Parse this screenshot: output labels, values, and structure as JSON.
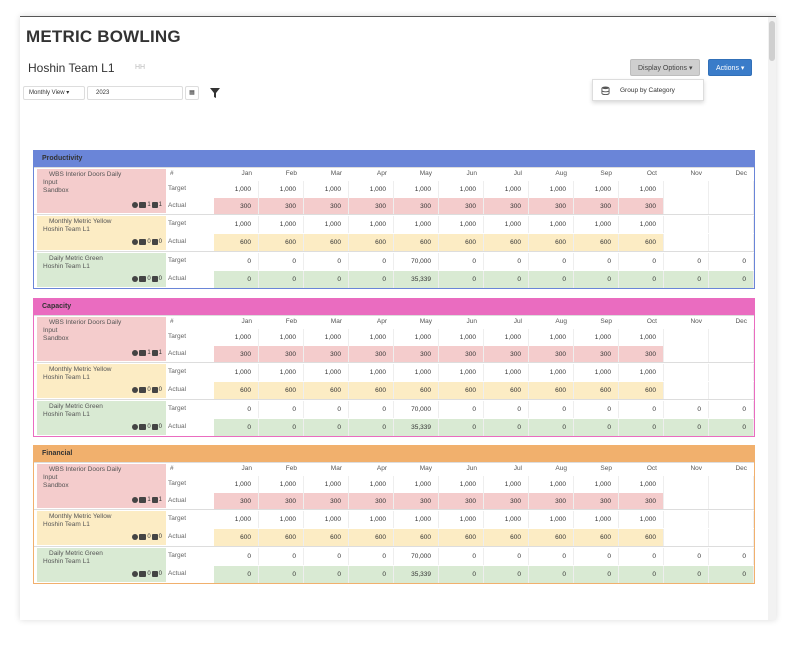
{
  "app_title": "METRIC BOWLING",
  "team": {
    "title": "Hoshin Team L1",
    "tag": "HH"
  },
  "buttons": {
    "display_options": "Display Options ▾",
    "actions": "Actions ▾"
  },
  "dropdown": {
    "group_by_category": "Group by Category"
  },
  "controls": {
    "view": "Monthly View ▾",
    "year": "2023",
    "calendar_icon": "▦"
  },
  "columns": {
    "hash": "#",
    "months": [
      "Jan",
      "Feb",
      "Mar",
      "Apr",
      "May",
      "Jun",
      "Jul",
      "Aug",
      "Sep",
      "Oct",
      "Nov",
      "Dec"
    ]
  },
  "row_labels": {
    "target": "Target",
    "actual": "Actual"
  },
  "colors": {
    "productivity": "#6a85d8",
    "capacity": "#ea6cc0",
    "financial": "#f1b06d",
    "red_bg": "#f4cccc",
    "yellow_bg": "#fcecc4",
    "green_bg": "#d9ead3"
  },
  "sections": [
    {
      "name": "Productivity",
      "metrics": [
        {
          "name_line1": "WBS Interior Doors Daily",
          "name_line2": "Input",
          "name_line3": "Sandbox",
          "icon_count_a": "1",
          "icon_count_b": "1",
          "color": "red",
          "target": [
            "1,000",
            "1,000",
            "1,000",
            "1,000",
            "1,000",
            "1,000",
            "1,000",
            "1,000",
            "1,000",
            "1,000",
            "",
            ""
          ],
          "actual": [
            "300",
            "300",
            "300",
            "300",
            "300",
            "300",
            "300",
            "300",
            "300",
            "300",
            "",
            ""
          ]
        },
        {
          "name_line1": "Monthly Metric Yellow",
          "name_line2": "Hoshin Team L1",
          "icon_count_a": "0",
          "icon_count_b": "0",
          "color": "yellow",
          "target": [
            "1,000",
            "1,000",
            "1,000",
            "1,000",
            "1,000",
            "1,000",
            "1,000",
            "1,000",
            "1,000",
            "1,000",
            "",
            ""
          ],
          "actual": [
            "600",
            "600",
            "600",
            "600",
            "600",
            "600",
            "600",
            "600",
            "600",
            "600",
            "",
            ""
          ]
        },
        {
          "name_line1": "Daily Metric Green",
          "name_line2": "Hoshin Team L1",
          "icon_count_a": "0",
          "icon_count_b": "0",
          "color": "green",
          "target": [
            "0",
            "0",
            "0",
            "0",
            "70,000",
            "0",
            "0",
            "0",
            "0",
            "0",
            "0",
            "0"
          ],
          "actual": [
            "0",
            "0",
            "0",
            "0",
            "35,339",
            "0",
            "0",
            "0",
            "0",
            "0",
            "0",
            "0"
          ]
        }
      ]
    },
    {
      "name": "Capacity",
      "metrics": [
        {
          "name_line1": "WBS Interior Doors Daily",
          "name_line2": "Input",
          "name_line3": "Sandbox",
          "icon_count_a": "1",
          "icon_count_b": "1",
          "color": "red",
          "target": [
            "1,000",
            "1,000",
            "1,000",
            "1,000",
            "1,000",
            "1,000",
            "1,000",
            "1,000",
            "1,000",
            "1,000",
            "",
            ""
          ],
          "actual": [
            "300",
            "300",
            "300",
            "300",
            "300",
            "300",
            "300",
            "300",
            "300",
            "300",
            "",
            ""
          ]
        },
        {
          "name_line1": "Monthly Metric Yellow",
          "name_line2": "Hoshin Team L1",
          "icon_count_a": "0",
          "icon_count_b": "0",
          "color": "yellow",
          "target": [
            "1,000",
            "1,000",
            "1,000",
            "1,000",
            "1,000",
            "1,000",
            "1,000",
            "1,000",
            "1,000",
            "1,000",
            "",
            ""
          ],
          "actual": [
            "600",
            "600",
            "600",
            "600",
            "600",
            "600",
            "600",
            "600",
            "600",
            "600",
            "",
            ""
          ]
        },
        {
          "name_line1": "Daily Metric Green",
          "name_line2": "Hoshin Team L1",
          "icon_count_a": "0",
          "icon_count_b": "0",
          "color": "green",
          "target": [
            "0",
            "0",
            "0",
            "0",
            "70,000",
            "0",
            "0",
            "0",
            "0",
            "0",
            "0",
            "0"
          ],
          "actual": [
            "0",
            "0",
            "0",
            "0",
            "35,339",
            "0",
            "0",
            "0",
            "0",
            "0",
            "0",
            "0"
          ]
        }
      ]
    },
    {
      "name": "Financial",
      "metrics": [
        {
          "name_line1": "WBS Interior Doors Daily",
          "name_line2": "Input",
          "name_line3": "Sandbox",
          "icon_count_a": "1",
          "icon_count_b": "1",
          "color": "red",
          "target": [
            "1,000",
            "1,000",
            "1,000",
            "1,000",
            "1,000",
            "1,000",
            "1,000",
            "1,000",
            "1,000",
            "1,000",
            "",
            ""
          ],
          "actual": [
            "300",
            "300",
            "300",
            "300",
            "300",
            "300",
            "300",
            "300",
            "300",
            "300",
            "",
            ""
          ]
        },
        {
          "name_line1": "Monthly Metric Yellow",
          "name_line2": "Hoshin Team L1",
          "icon_count_a": "0",
          "icon_count_b": "0",
          "color": "yellow",
          "target": [
            "1,000",
            "1,000",
            "1,000",
            "1,000",
            "1,000",
            "1,000",
            "1,000",
            "1,000",
            "1,000",
            "1,000",
            "",
            ""
          ],
          "actual": [
            "600",
            "600",
            "600",
            "600",
            "600",
            "600",
            "600",
            "600",
            "600",
            "600",
            "",
            ""
          ]
        },
        {
          "name_line1": "Daily Metric Green",
          "name_line2": "Hoshin Team L1",
          "icon_count_a": "0",
          "icon_count_b": "0",
          "color": "green",
          "target": [
            "0",
            "0",
            "0",
            "0",
            "70,000",
            "0",
            "0",
            "0",
            "0",
            "0",
            "0",
            "0"
          ],
          "actual": [
            "0",
            "0",
            "0",
            "0",
            "35,339",
            "0",
            "0",
            "0",
            "0",
            "0",
            "0",
            "0"
          ]
        }
      ]
    }
  ]
}
